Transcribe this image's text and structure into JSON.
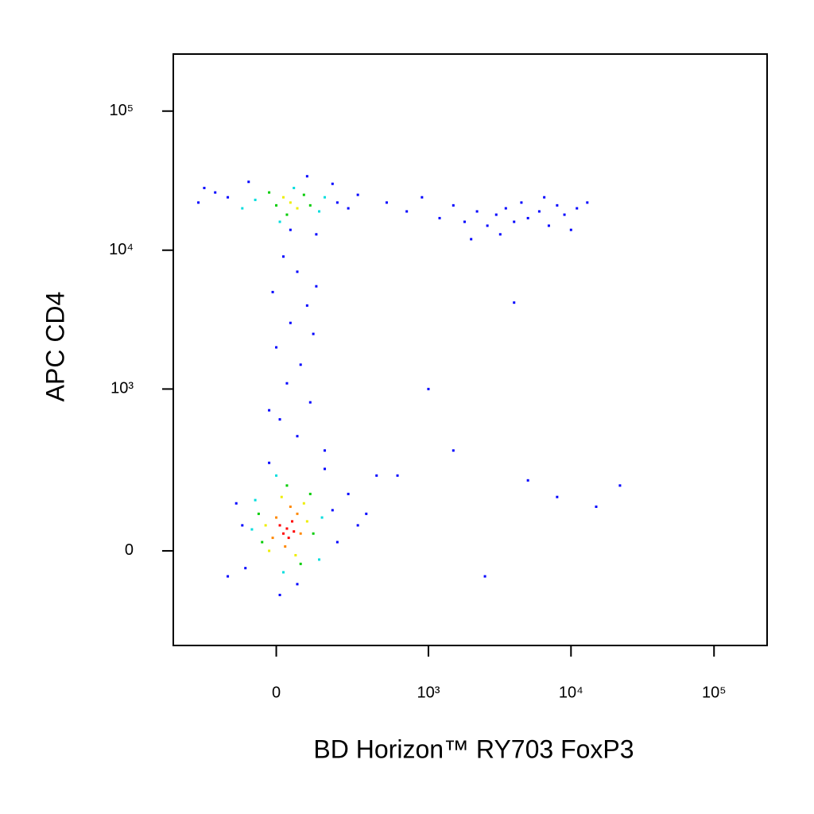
{
  "chart_data": {
    "type": "scatter",
    "x_label": "BD Horizon™ RY703 FoxP3",
    "y_label": "APC CD4",
    "xscale": "biexponential",
    "yscale": "biexponential",
    "xlim": [
      -440,
      235000
    ],
    "ylim": [
      -316,
      257000
    ],
    "xticks": [
      0,
      {
        "value": 1000,
        "label": "10³"
      },
      {
        "value": 10000,
        "label": "10⁴"
      },
      {
        "value": 100000,
        "label": "10⁵"
      }
    ],
    "yticks": [
      0,
      {
        "value": 1000,
        "label": "10³"
      },
      {
        "value": 10000,
        "label": "10⁴"
      },
      {
        "value": 100000,
        "label": "10⁵"
      }
    ],
    "x": [
      30,
      20,
      45,
      35,
      10,
      50,
      0,
      60,
      25,
      70,
      -10,
      40,
      -30,
      90,
      15,
      80,
      -20,
      55,
      -50,
      110,
      30,
      -40,
      100,
      70,
      -70,
      140,
      0,
      -60,
      130,
      20,
      -100,
      180,
      -20,
      -90,
      200,
      60,
      250,
      300,
      -120,
      10,
      150,
      350,
      420,
      -150,
      40,
      20,
      60,
      0,
      80,
      30,
      -20,
      100,
      -60,
      130,
      50,
      -100,
      150,
      10,
      -150,
      -200,
      200,
      250,
      -250,
      180,
      40,
      90,
      -80,
      300,
      -280,
      120,
      500,
      700,
      900,
      1200,
      1500,
      1800,
      2200,
      2600,
      3000,
      3500,
      4000,
      4500,
      5000,
      6000,
      7000,
      8000,
      9000,
      11000,
      13000,
      2000,
      3200,
      6500,
      10000,
      20,
      60,
      -10,
      90,
      40,
      110,
      0,
      70,
      30,
      100,
      10,
      60,
      -20,
      150,
      120,
      1000,
      1500,
      4000,
      5000,
      8000,
      2500,
      15000,
      22000,
      600
    ],
    "values": [
      52,
      40,
      70,
      30,
      60,
      45,
      80,
      90,
      10,
      40,
      30,
      110,
      60,
      70,
      140,
      120,
      0,
      -10,
      90,
      40,
      180,
      20,
      150,
      -30,
      50,
      80,
      220,
      130,
      -20,
      -50,
      60,
      100,
      280,
      -40,
      20,
      -80,
      150,
      60,
      120,
      -110,
      250,
      90,
      220,
      -60,
      22000,
      24000,
      20000,
      21000,
      25000,
      18000,
      26000,
      21000,
      23000,
      19000,
      28000,
      20000,
      24000,
      16000,
      24000,
      26000,
      22000,
      20000,
      28000,
      30000,
      14000,
      34000,
      31000,
      25000,
      22000,
      13000,
      22000,
      19000,
      24000,
      17000,
      21000,
      16000,
      19000,
      15000,
      18000,
      20000,
      16000,
      22000,
      17000,
      19000,
      15000,
      21000,
      18000,
      20000,
      22000,
      12000,
      13000,
      24000,
      14000,
      9000,
      7000,
      5000,
      4000,
      3000,
      2500,
      2000,
      1500,
      1100,
      800,
      600,
      450,
      700,
      350,
      5500,
      1000,
      350,
      4200,
      200,
      140,
      -60,
      110,
      180,
      220
    ],
    "colors": [
      "#f00",
      "#f00",
      "#f00",
      "#f00",
      "#f00",
      "#f00",
      "#f80",
      "#f80",
      "#f80",
      "#f80",
      "#f80",
      "#f80",
      "#ee0",
      "#ee0",
      "#ee0",
      "#ee0",
      "#ee0",
      "#ee0",
      "#0c0",
      "#0c0",
      "#0c0",
      "#0c0",
      "#0c0",
      "#0c0",
      "#0dd",
      "#0dd",
      "#0dd",
      "#0dd",
      "#0dd",
      "#0dd",
      "#00f",
      "#00f",
      "#00f",
      "#00f",
      "#00f",
      "#00f",
      "#00f",
      "#00f",
      "#00f",
      "#00f",
      "#00f",
      "#00f",
      "#00f",
      "#00f",
      "#ee0",
      "#ee0",
      "#ee0",
      "#0c0",
      "#0c0",
      "#0c0",
      "#0c0",
      "#0c0",
      "#0dd",
      "#0dd",
      "#0dd",
      "#0dd",
      "#0dd",
      "#0dd",
      "#00f",
      "#00f",
      "#00f",
      "#00f",
      "#00f",
      "#00f",
      "#00f",
      "#00f",
      "#00f",
      "#00f",
      "#00f",
      "#00f",
      "#00f",
      "#00f",
      "#00f",
      "#00f",
      "#00f",
      "#00f",
      "#00f",
      "#00f",
      "#00f",
      "#00f",
      "#00f",
      "#00f",
      "#00f",
      "#00f",
      "#00f",
      "#00f",
      "#00f",
      "#00f",
      "#00f",
      "#00f",
      "#00f",
      "#00f",
      "#00f",
      "#00f",
      "#00f",
      "#00f",
      "#00f",
      "#00f",
      "#00f",
      "#00f",
      "#00f",
      "#00f",
      "#00f",
      "#00f",
      "#00f",
      "#00f",
      "#00f",
      "#00f",
      "#00f",
      "#00f",
      "#00f",
      "#00f",
      "#00f",
      "#00f",
      "#00f",
      "#00f",
      "#00f"
    ]
  }
}
